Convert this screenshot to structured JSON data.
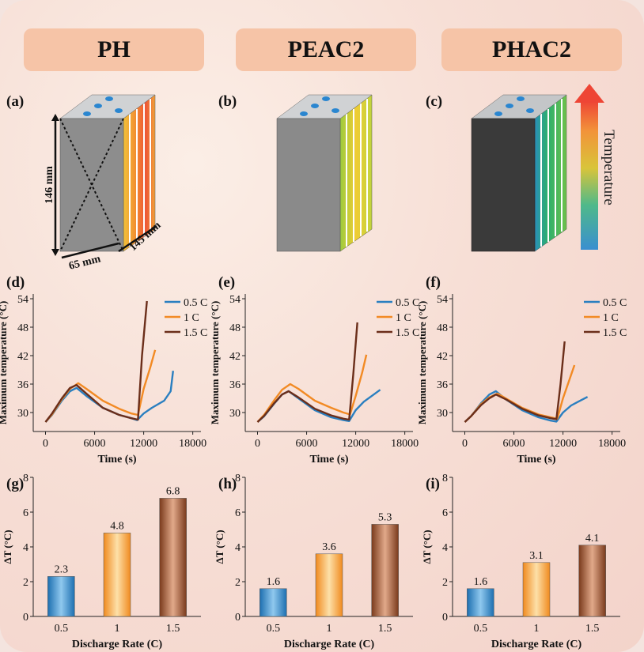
{
  "headers": [
    "PH",
    "PEAC2",
    "PHAC2"
  ],
  "panel_labels": [
    "(a)",
    "(b)",
    "(c)",
    "(d)",
    "(e)",
    "(f)",
    "(g)",
    "(h)",
    "(i)"
  ],
  "dimensions": {
    "height": "146 mm",
    "width": "65 mm",
    "depth": "145 mm"
  },
  "colorbar_label": "Temperature",
  "colors": {
    "series_05": "#2a7fc0",
    "series_1": "#f28a24",
    "series_15": "#6b2e1a",
    "header_bg": "#f6c4a7"
  },
  "chart_data": [
    {
      "type": "line",
      "title": "PH",
      "xlabel": "Time (s)",
      "ylabel": "Maximum temperature (°C)",
      "xlim": [
        -1500,
        19000
      ],
      "ylim": [
        26,
        55
      ],
      "xticks": [
        0,
        6000,
        12000,
        18000
      ],
      "yticks": [
        30,
        36,
        42,
        48,
        54
      ],
      "series": [
        {
          "name": "0.5 C",
          "x": [
            0,
            800,
            2000,
            3000,
            3800,
            5000,
            7000,
            9000,
            10500,
            11200,
            12000,
            13000,
            14500,
            15300,
            15600
          ],
          "y": [
            28,
            29.5,
            32.5,
            34.5,
            35.2,
            33.5,
            31,
            29.5,
            28.8,
            28.4,
            29.8,
            31,
            32.5,
            34.5,
            38.8
          ]
        },
        {
          "name": "1 C",
          "x": [
            0,
            800,
            2000,
            3000,
            4000,
            5000,
            7000,
            9000,
            10500,
            11300,
            12000,
            12800,
            13400
          ],
          "y": [
            28,
            29.6,
            32.8,
            35,
            36.2,
            35,
            32.5,
            30.8,
            29.8,
            29.5,
            35,
            39.5,
            43.2
          ]
        },
        {
          "name": "1.5 C",
          "x": [
            0,
            800,
            2000,
            3000,
            3800,
            5000,
            7000,
            9000,
            10500,
            11300,
            11800,
            12400
          ],
          "y": [
            28,
            29.8,
            33,
            35.2,
            35.8,
            34,
            31,
            29.5,
            28.8,
            28.5,
            42,
            53.5
          ]
        }
      ]
    },
    {
      "type": "line",
      "title": "PEAC2",
      "xlabel": "Time (s)",
      "ylabel": "Maximum temperature (°C)",
      "xlim": [
        -1500,
        19000
      ],
      "ylim": [
        26,
        55
      ],
      "xticks": [
        0,
        6000,
        12000,
        18000
      ],
      "yticks": [
        30,
        36,
        42,
        48,
        54
      ],
      "series": [
        {
          "name": "0.5 C",
          "x": [
            0,
            800,
            2000,
            3000,
            3800,
            5000,
            7000,
            9000,
            10500,
            11200,
            12000,
            13000,
            14200,
            15000
          ],
          "y": [
            28,
            29.2,
            31.8,
            33.8,
            34.5,
            33,
            30.5,
            29,
            28.4,
            28.2,
            30.5,
            32.3,
            33.8,
            34.8
          ]
        },
        {
          "name": "1 C",
          "x": [
            0,
            800,
            2000,
            3000,
            4000,
            5000,
            7000,
            9000,
            10500,
            11300,
            12000,
            12800,
            13300
          ],
          "y": [
            28,
            29.5,
            32.5,
            34.8,
            36,
            35,
            32.5,
            31,
            30,
            29.6,
            33.5,
            38.5,
            42.2
          ]
        },
        {
          "name": "1.5 C",
          "x": [
            0,
            800,
            2000,
            3000,
            3800,
            5000,
            7000,
            9000,
            10500,
            11200,
            11700,
            12200
          ],
          "y": [
            28,
            29.3,
            31.9,
            33.8,
            34.5,
            33.2,
            30.8,
            29.4,
            28.7,
            28.5,
            38,
            49
          ]
        }
      ]
    },
    {
      "type": "line",
      "title": "PHAC2",
      "xlabel": "Time (s)",
      "ylabel": "Maximum temperature (°C)",
      "xlim": [
        -1500,
        19000
      ],
      "ylim": [
        26,
        55
      ],
      "xticks": [
        0,
        6000,
        12000,
        18000
      ],
      "yticks": [
        30,
        36,
        42,
        48,
        54
      ],
      "series": [
        {
          "name": "0.5 C",
          "x": [
            0,
            800,
            2000,
            3000,
            3800,
            5000,
            7000,
            9000,
            10500,
            11200,
            12000,
            13000,
            14200,
            15000
          ],
          "y": [
            28,
            29.3,
            32,
            33.8,
            34.5,
            32.8,
            30.5,
            29,
            28.3,
            28.1,
            30,
            31.5,
            32.6,
            33.3
          ]
        },
        {
          "name": "1 C",
          "x": [
            0,
            800,
            2000,
            3000,
            4000,
            5000,
            7000,
            9000,
            10500,
            11300,
            12000,
            12800,
            13400
          ],
          "y": [
            28,
            29.3,
            31.8,
            33.2,
            34,
            33,
            31,
            29.6,
            29,
            28.7,
            33,
            37,
            40
          ]
        },
        {
          "name": "1.5 C",
          "x": [
            0,
            800,
            2000,
            3000,
            3800,
            5000,
            7000,
            9000,
            10500,
            11200,
            11700,
            12200
          ],
          "y": [
            28,
            29.3,
            31.6,
            33,
            33.8,
            32.8,
            30.8,
            29.4,
            28.8,
            28.6,
            36,
            45
          ]
        }
      ]
    },
    {
      "type": "bar",
      "title": "PH",
      "xlabel": "Discharge Rate (C)",
      "ylabel": "ΔT (°C)",
      "ylim": [
        0,
        8
      ],
      "yticks": [
        0,
        2,
        4,
        6,
        8
      ],
      "categories": [
        "0.5",
        "1",
        "1.5"
      ],
      "values": [
        2.3,
        4.8,
        6.8
      ],
      "labels": [
        "2.3",
        "4.8",
        "6.8"
      ]
    },
    {
      "type": "bar",
      "title": "PEAC2",
      "xlabel": "Discharge Rate (C)",
      "ylabel": "ΔT (°C)",
      "ylim": [
        0,
        8
      ],
      "yticks": [
        0,
        2,
        4,
        6,
        8
      ],
      "categories": [
        "0.5",
        "1",
        "1.5"
      ],
      "values": [
        1.6,
        3.6,
        5.3
      ],
      "labels": [
        "1.6",
        "3.6",
        "5.3"
      ]
    },
    {
      "type": "bar",
      "title": "PHAC2",
      "xlabel": "Discharge Rate (C)",
      "ylabel": "ΔT (°C)",
      "ylim": [
        0,
        8
      ],
      "yticks": [
        0,
        2,
        4,
        6,
        8
      ],
      "categories": [
        "0.5",
        "1",
        "1.5"
      ],
      "values": [
        1.6,
        3.1,
        4.1
      ],
      "labels": [
        "1.6",
        "3.1",
        "4.1"
      ]
    }
  ]
}
